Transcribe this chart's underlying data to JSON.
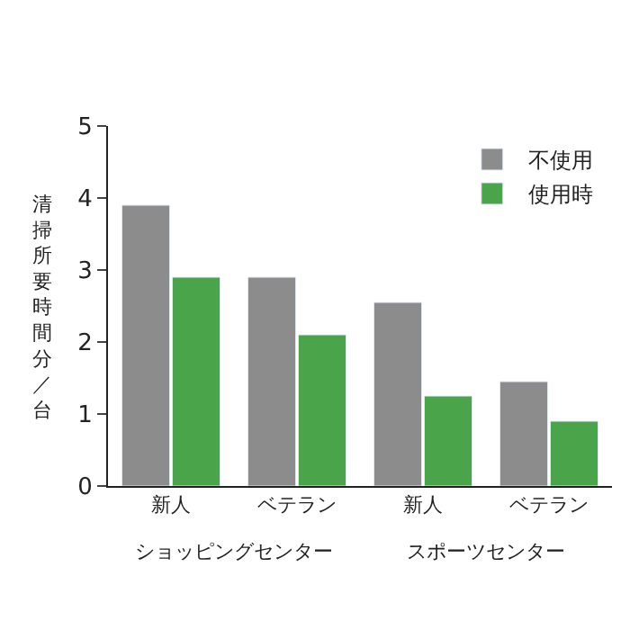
{
  "chart_data": {
    "type": "bar",
    "categories": [
      "新人",
      "ベテラン",
      "新人",
      "ベテラン"
    ],
    "series": [
      {
        "name": "不使用",
        "color": "#8c8c8c",
        "values": [
          3.9,
          2.9,
          2.55,
          1.45
        ]
      },
      {
        "name": "使用時",
        "color": "#4aa54a",
        "values": [
          2.9,
          2.1,
          1.25,
          0.9
        ]
      }
    ],
    "ylabel": "清掃所要時間分／台",
    "annotations": [
      "ショッピングセンター",
      "スポーツセンター"
    ],
    "ylim": [
      0,
      5
    ],
    "yticks": [
      0,
      1,
      2,
      3,
      4,
      5
    ],
    "legend": "top right"
  }
}
